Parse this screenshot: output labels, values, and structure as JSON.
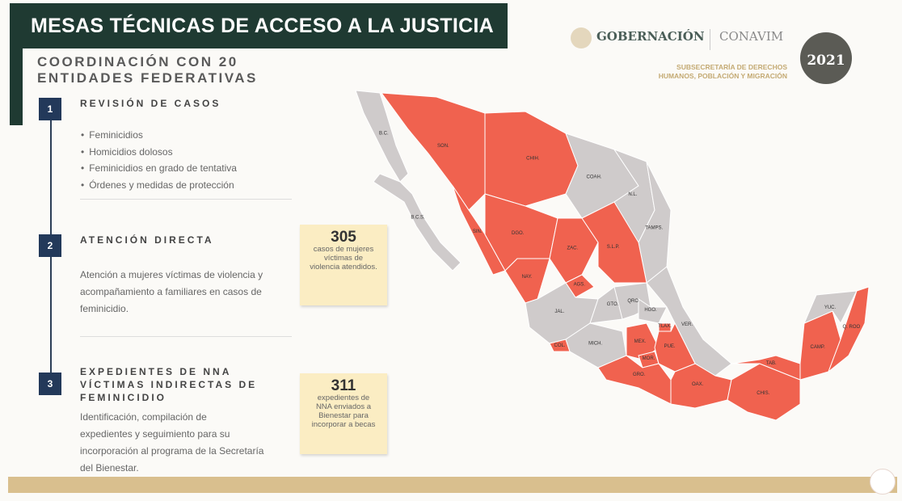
{
  "title": "MESAS TÉCNICAS DE ACCESO A LA JUSTICIA",
  "subtitle": [
    "COORDINACIÓN CON 20",
    "ENTIDADES FEDERATIVAS"
  ],
  "header": {
    "gobernacion": "GOBERNACIÓN",
    "conavim": "CONAVIM",
    "subsecretaria": [
      "SUBSECRETARÍA DE DERECHOS",
      "HUMANOS, POBLACIÓN Y MIGRACIÓN"
    ],
    "year_badge": "2021"
  },
  "sections": [
    {
      "number": "1",
      "title": "REVISIÓN DE CASOS",
      "bullets": [
        "Feminicidios",
        "Homicidios dolosos",
        "Feminicidios en grado de tentativa",
        "Órdenes y medidas de protección"
      ]
    },
    {
      "number": "2",
      "title": "ATENCIÓN DIRECTA",
      "text": [
        "Atención a mujeres víctimas de violencia y",
        "acompañamiento a familiares en casos de",
        "feminicidio."
      ],
      "stat": {
        "value": "305",
        "caption": [
          "casos de mujeres",
          "víctimas de",
          "violencia atendidos."
        ]
      }
    },
    {
      "number": "3",
      "title": [
        "EXPEDIENTES DE NNA",
        "VÍCTIMAS INDIRECTAS DE",
        "FEMINICIDIO"
      ],
      "text": [
        "Identificación, compilación de",
        "expedientes y seguimiento para su",
        "incorporación al programa de la Secretaría",
        "del Bienestar."
      ],
      "stat": {
        "value": "311",
        "caption": [
          "expedientes de",
          "NNA enviados a",
          "Bienestar para",
          "incorporar a becas"
        ]
      }
    }
  ],
  "map": {
    "colors": {
      "covered": "#f0624f",
      "not_covered": "#cfcbcb"
    },
    "states": [
      {
        "label": "B.C.",
        "covered": false
      },
      {
        "label": "B.C.S.",
        "covered": false
      },
      {
        "label": "SON.",
        "covered": true
      },
      {
        "label": "CHIH.",
        "covered": true
      },
      {
        "label": "COAH.",
        "covered": false
      },
      {
        "label": "N.L.",
        "covered": false
      },
      {
        "label": "TAMPS.",
        "covered": false
      },
      {
        "label": "SIN.",
        "covered": true
      },
      {
        "label": "DGO.",
        "covered": true
      },
      {
        "label": "ZAC.",
        "covered": true
      },
      {
        "label": "S.L.P.",
        "covered": true
      },
      {
        "label": "AGS.",
        "covered": true
      },
      {
        "label": "NAY.",
        "covered": true
      },
      {
        "label": "JAL.",
        "covered": false
      },
      {
        "label": "COL.",
        "covered": true
      },
      {
        "label": "MICH.",
        "covered": false
      },
      {
        "label": "GTO.",
        "covered": false
      },
      {
        "label": "QRO.",
        "covered": false
      },
      {
        "label": "HGO.",
        "covered": false
      },
      {
        "label": "VER.",
        "covered": false
      },
      {
        "label": "MEX.",
        "covered": true
      },
      {
        "label": "MOR.",
        "covered": true
      },
      {
        "label": "TLAX.",
        "covered": true
      },
      {
        "label": "PUE.",
        "covered": true
      },
      {
        "label": "GRO.",
        "covered": true
      },
      {
        "label": "OAX.",
        "covered": true
      },
      {
        "label": "CHIS.",
        "covered": true
      },
      {
        "label": "TAB.",
        "covered": true
      },
      {
        "label": "CAMP.",
        "covered": true
      },
      {
        "label": "YUC.",
        "covered": false
      },
      {
        "label": "Q. ROO",
        "covered": true
      }
    ]
  }
}
